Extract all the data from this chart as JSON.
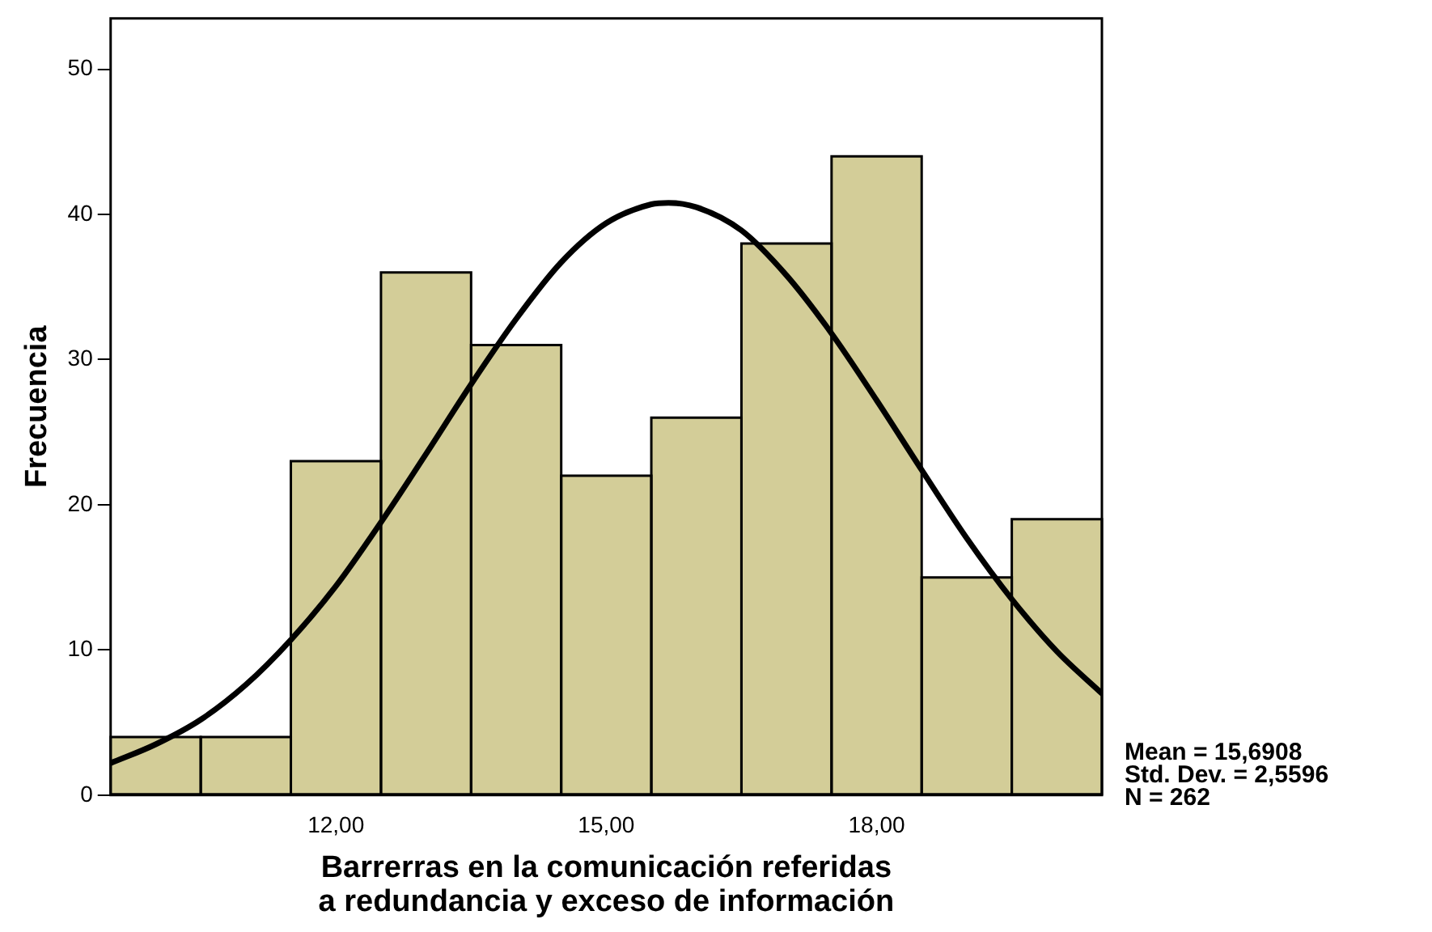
{
  "chart_data": {
    "type": "histogram",
    "xlabel": "Barrerras en la comunicación referidas a redundancia y exceso de información",
    "ylabel": "Frecuencia",
    "bins": [
      9.5,
      10.5,
      11.5,
      12.5,
      13.5,
      14.5,
      15.5,
      16.5,
      17.5,
      18.5,
      19.5,
      20.5
    ],
    "values": [
      4,
      4,
      23,
      36,
      31,
      22,
      26,
      38,
      44,
      15,
      19
    ],
    "color": "#d3cd98",
    "series": [
      {
        "type": "line",
        "color": "#000000",
        "x": [
          9.5,
          10,
          10.5,
          11,
          11.5,
          12,
          12.5,
          13,
          13.5,
          14,
          14.5,
          15,
          15.5,
          15.69,
          16,
          16.5,
          17,
          17.5,
          18,
          18.5,
          19,
          19.5,
          20,
          20.5
        ],
        "values": [
          2.2,
          3.5,
          5.2,
          7.6,
          10.7,
          14.4,
          18.8,
          23.5,
          28.3,
          32.8,
          36.7,
          39.4,
          40.7,
          40.8,
          40.5,
          38.9,
          35.8,
          31.8,
          27.2,
          22.4,
          17.7,
          13.5,
          9.9,
          7.0
        ]
      }
    ],
    "xlim": [
      9.5,
      20.5
    ],
    "xticks": [
      {
        "value": 12,
        "label": "12,00"
      },
      {
        "value": 15,
        "label": "15,00"
      },
      {
        "value": 18,
        "label": "18,00"
      }
    ],
    "ylim": [
      0,
      53.5
    ],
    "yticks": [
      0,
      10,
      20,
      30,
      40,
      50
    ],
    "grid": false,
    "legend": false,
    "marker": "none",
    "line_style": "solid",
    "annotations": [
      "Mean = 15,6908",
      "Std. Dev. = 2,5596",
      "N = 262"
    ]
  }
}
